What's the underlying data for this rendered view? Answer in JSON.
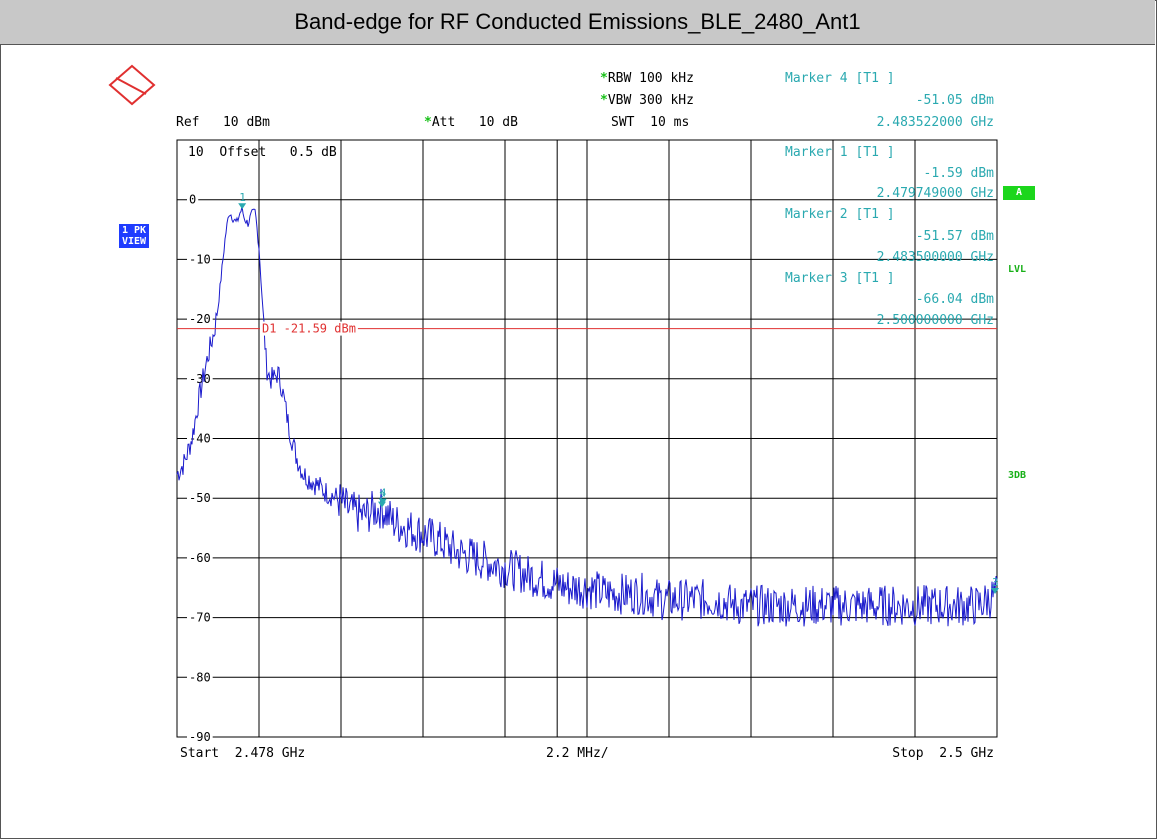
{
  "title": "Band-edge for RF Conducted Emissions_BLE_2480_Ant1",
  "header": {
    "rbw_label": "RBW",
    "rbw_value": "100 kHz",
    "vbw_label": "VBW",
    "vbw_value": "300 kHz",
    "swt_label": "SWT",
    "swt_value": "10 ms",
    "ref_label": "Ref",
    "ref_value": "10 dBm",
    "att_label": "Att",
    "att_value": "10 dB",
    "offset_text": "Offset",
    "offset_value": "0.5 dB",
    "star": "*"
  },
  "markers": [
    {
      "name": "Marker 4 [T1 ]",
      "level": "-51.05 dBm",
      "freq": "2.483522000 GHz"
    },
    {
      "name": "Marker 1 [T1 ]",
      "level": "-1.59 dBm",
      "freq": "2.479749000 GHz"
    },
    {
      "name": "Marker 2 [T1 ]",
      "level": "-51.57 dBm",
      "freq": "2.483500000 GHz"
    },
    {
      "name": "Marker 3 [T1 ]",
      "level": "-66.04 dBm",
      "freq": "2.500000000 GHz"
    }
  ],
  "side": {
    "trace_box_line1": "1 PK",
    "trace_box_line2": "VIEW",
    "a_box": "A",
    "lvl": "LVL",
    "db3": "3DB"
  },
  "footer": {
    "start": "Start  2.478 GHz",
    "span": "2.2 MHz/",
    "stop": "Stop  2.5 GHz"
  },
  "colors": {
    "trace": "#1a1acc",
    "display_line": "#e03030",
    "marker": "#2aa9b0",
    "grid": "#000000"
  },
  "chart_data": {
    "type": "line",
    "xlabel": "",
    "ylabel": "",
    "x_unit": "GHz",
    "y_unit": "dBm",
    "xlim": [
      2.478,
      2.5
    ],
    "ylim": [
      -90,
      10
    ],
    "ytick_labels": [
      "10",
      "0",
      "-10",
      "-20",
      "-30",
      "-40",
      "-50",
      "-60",
      "-70",
      "-80",
      "-90"
    ],
    "ytick_values": [
      10,
      0,
      -10,
      -20,
      -30,
      -40,
      -50,
      -60,
      -70,
      -80,
      -90
    ],
    "grid": true,
    "display_line": {
      "label": "D1 -21.59 dBm",
      "value": -21.59
    },
    "marker_points": [
      {
        "label": "1",
        "x": 2.479749,
        "y": -1.59
      },
      {
        "label": "2",
        "x": 2.4835,
        "y": -51.57
      },
      {
        "label": "3",
        "x": 2.5,
        "y": -66.04
      },
      {
        "label": "4",
        "x": 2.483522,
        "y": -51.05
      }
    ],
    "series": [
      {
        "x": [
          2.478,
          2.4782,
          2.4784,
          2.4786,
          2.4788,
          2.479,
          2.4791,
          2.4792,
          2.4793,
          2.4794,
          2.4795,
          2.4796,
          2.4797,
          2.47975,
          2.4798,
          2.4799,
          2.48,
          2.4801,
          2.4802,
          2.4803,
          2.4804,
          2.4805,
          2.4806,
          2.4807,
          2.4808,
          2.481,
          2.4812,
          2.4814,
          2.4816,
          2.4818,
          2.482,
          2.4823,
          2.4826,
          2.483,
          2.4833,
          2.4835,
          2.4838,
          2.4842,
          2.4846,
          2.485,
          2.4855,
          2.486,
          2.4865,
          2.487,
          2.4875,
          2.488,
          2.4885,
          2.489,
          2.4895,
          2.49,
          2.4905,
          2.491,
          2.4915,
          2.492,
          2.4925,
          2.493,
          2.4935,
          2.494,
          2.4945,
          2.495,
          2.4955,
          2.496,
          2.4965,
          2.497,
          2.4975,
          2.498,
          2.4985,
          2.499,
          2.4995,
          2.5
        ],
        "values": [
          -46,
          -44,
          -40,
          -33,
          -27,
          -22,
          -18,
          -12,
          -6,
          -2,
          -3,
          -4,
          -2,
          -1.6,
          -3,
          -4,
          -2.5,
          -2,
          -8,
          -18,
          -28,
          -30,
          -30,
          -29,
          -31,
          -38,
          -43,
          -46,
          -47,
          -48,
          -49,
          -50,
          -52,
          -53,
          -52,
          -51.6,
          -54,
          -55,
          -56,
          -57,
          -59,
          -60,
          -61,
          -62,
          -63,
          -64,
          -65,
          -65,
          -66,
          -66,
          -66,
          -67,
          -67,
          -67,
          -67,
          -68,
          -68,
          -68,
          -68,
          -68,
          -68,
          -68,
          -68,
          -68,
          -68,
          -68,
          -68,
          -68,
          -68,
          -66
        ]
      }
    ]
  }
}
